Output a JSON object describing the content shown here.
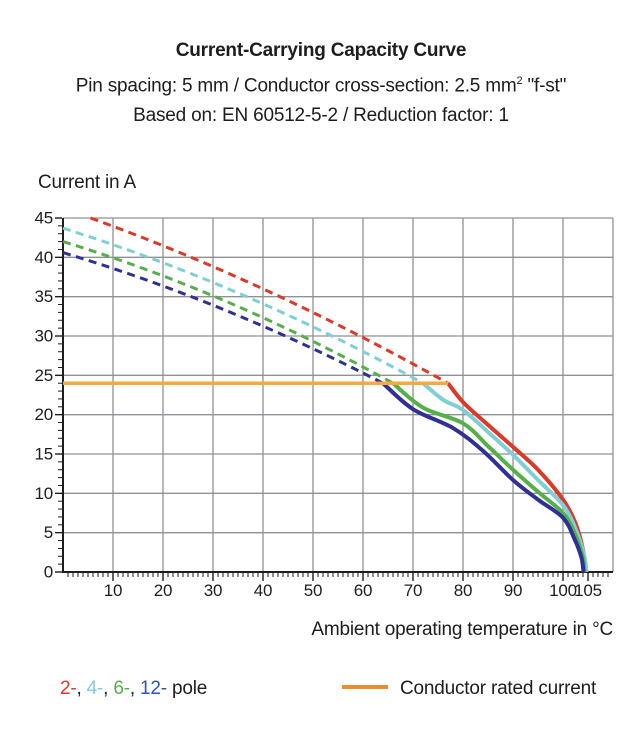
{
  "header": {
    "title": "Current-Carrying Capacity Curve",
    "subtitle_prefix": "Pin spacing: 5 mm / Conductor cross-section: 2.5 mm",
    "subtitle_sup": "2",
    "subtitle_suffix": " \"f-st\"",
    "subtitle2": "Based on: EN 60512-5-2 / Reduction factor: 1"
  },
  "chart_data": {
    "type": "line",
    "title": "Current-Carrying Capacity Curve",
    "xlabel": "Ambient operating temperature in °C",
    "ylabel": "Current in A",
    "xlim": [
      0,
      110
    ],
    "ylim": [
      0,
      45
    ],
    "x_major_ticks": [
      10,
      20,
      30,
      40,
      50,
      60,
      70,
      80,
      90,
      100,
      105
    ],
    "y_major_ticks": [
      0,
      5,
      10,
      15,
      20,
      25,
      30,
      35,
      40,
      45
    ],
    "x_minor_step": 1,
    "y_minor_step": 1,
    "grid": true,
    "colors": {
      "grid": "#8f9193",
      "axis": "#1d1d1b",
      "text": "#1d1d1b"
    },
    "rated_current": {
      "label": "Conductor rated current",
      "value_a": 24,
      "x_start": 0,
      "x_end": 77,
      "color": "#f6a93f"
    },
    "series": [
      {
        "name": "2-pole",
        "color": "#dc3927",
        "dashed": [
          [
            5.5,
            45
          ],
          [
            41,
            35.7
          ],
          [
            77,
            24
          ]
        ],
        "solid": [
          [
            77,
            24
          ],
          [
            80,
            21.6
          ],
          [
            85,
            18.7
          ],
          [
            90,
            15.9
          ],
          [
            95,
            13.0
          ],
          [
            100,
            9.2
          ],
          [
            102.5,
            6.2
          ],
          [
            104,
            2.8
          ],
          [
            104.5,
            0
          ]
        ]
      },
      {
        "name": "4-pole",
        "color": "#7ecfd6",
        "dashed": [
          [
            0,
            43.7
          ],
          [
            36,
            35.2
          ],
          [
            72,
            24
          ]
        ],
        "solid": [
          [
            72,
            24
          ],
          [
            76,
            21.9
          ],
          [
            80,
            20.6
          ],
          [
            85,
            17.8
          ],
          [
            90,
            14.9
          ],
          [
            95,
            11.7
          ],
          [
            100,
            8.5
          ],
          [
            102.5,
            5.5
          ],
          [
            104.2,
            2.2
          ],
          [
            104.7,
            0
          ]
        ]
      },
      {
        "name": "6-pole",
        "color": "#55b04b",
        "dashed": [
          [
            0,
            42
          ],
          [
            33,
            34.3
          ],
          [
            66,
            24
          ]
        ],
        "solid": [
          [
            66,
            24
          ],
          [
            72,
            20.9
          ],
          [
            80,
            18.9
          ],
          [
            85,
            16.0
          ],
          [
            90,
            13.0
          ],
          [
            95,
            10.2
          ],
          [
            100,
            7.5
          ],
          [
            102.3,
            5.0
          ],
          [
            103.9,
            2.0
          ],
          [
            104.3,
            0
          ]
        ]
      },
      {
        "name": "12-pole",
        "color": "#2f2f96",
        "dashed": [
          [
            0,
            40.6
          ],
          [
            32,
            33.4
          ],
          [
            64,
            24
          ]
        ],
        "solid": [
          [
            64,
            24
          ],
          [
            70,
            20.7
          ],
          [
            78,
            18.3
          ],
          [
            84,
            15.4
          ],
          [
            90,
            11.7
          ],
          [
            95,
            9.2
          ],
          [
            100,
            6.9
          ],
          [
            102.3,
            4.2
          ],
          [
            103.7,
            1.8
          ],
          [
            104.1,
            0
          ]
        ]
      }
    ]
  },
  "legend": {
    "pole_items": [
      {
        "label": "2-",
        "color": "#dc3927"
      },
      {
        "label": "4-",
        "color": "#7ecfd6"
      },
      {
        "label": "6-",
        "color": "#55b04b"
      },
      {
        "label": "12-",
        "color": "#2d55b4"
      }
    ],
    "separator": ", ",
    "suffix": " pole",
    "rated_label": "Conductor rated current",
    "rated_color": "#ee8b2f"
  }
}
